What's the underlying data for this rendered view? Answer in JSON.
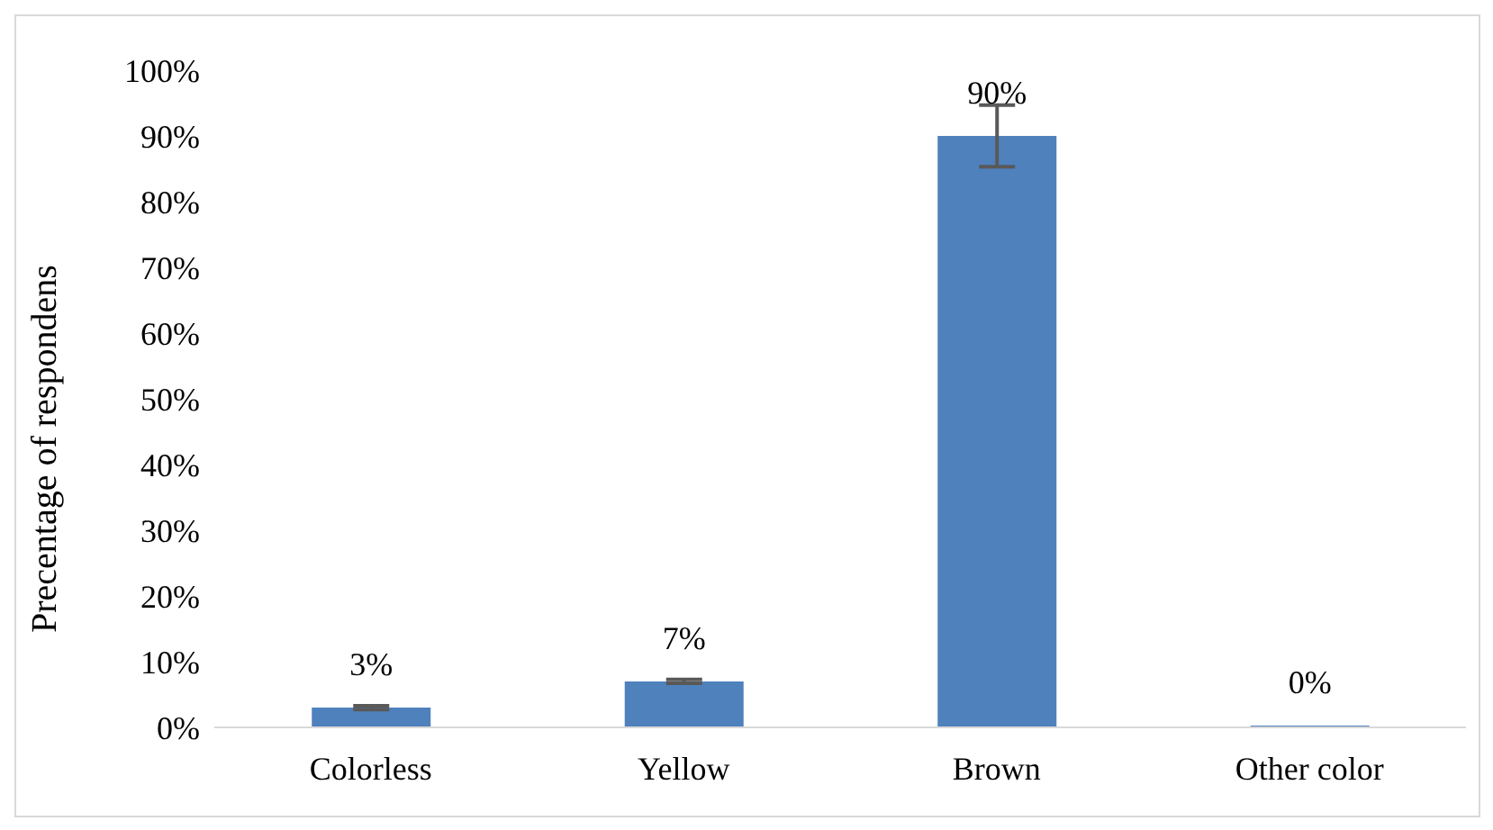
{
  "chart_data": {
    "type": "bar",
    "ylabel": "Precentage of respondens",
    "categories": [
      "Colorless",
      "Yellow",
      "Brown",
      "Other color"
    ],
    "values": [
      3,
      7,
      90,
      0
    ],
    "errors": [
      0.3,
      0.3,
      4.7,
      null
    ],
    "color": "#4f81bd",
    "ylim": [
      0,
      100
    ],
    "yticks": [
      {
        "value": 0,
        "label": "0%"
      },
      {
        "value": 10,
        "label": "10%"
      },
      {
        "value": 20,
        "label": "20%"
      },
      {
        "value": 30,
        "label": "30%"
      },
      {
        "value": 40,
        "label": "40%"
      },
      {
        "value": 50,
        "label": "50%"
      },
      {
        "value": 60,
        "label": "60%"
      },
      {
        "value": 70,
        "label": "70%"
      },
      {
        "value": 80,
        "label": "80%"
      },
      {
        "value": 90,
        "label": "90%"
      },
      {
        "value": 100,
        "label": "100%"
      }
    ],
    "value_labels": [
      "3%",
      "7%",
      "90%",
      "0%"
    ]
  }
}
